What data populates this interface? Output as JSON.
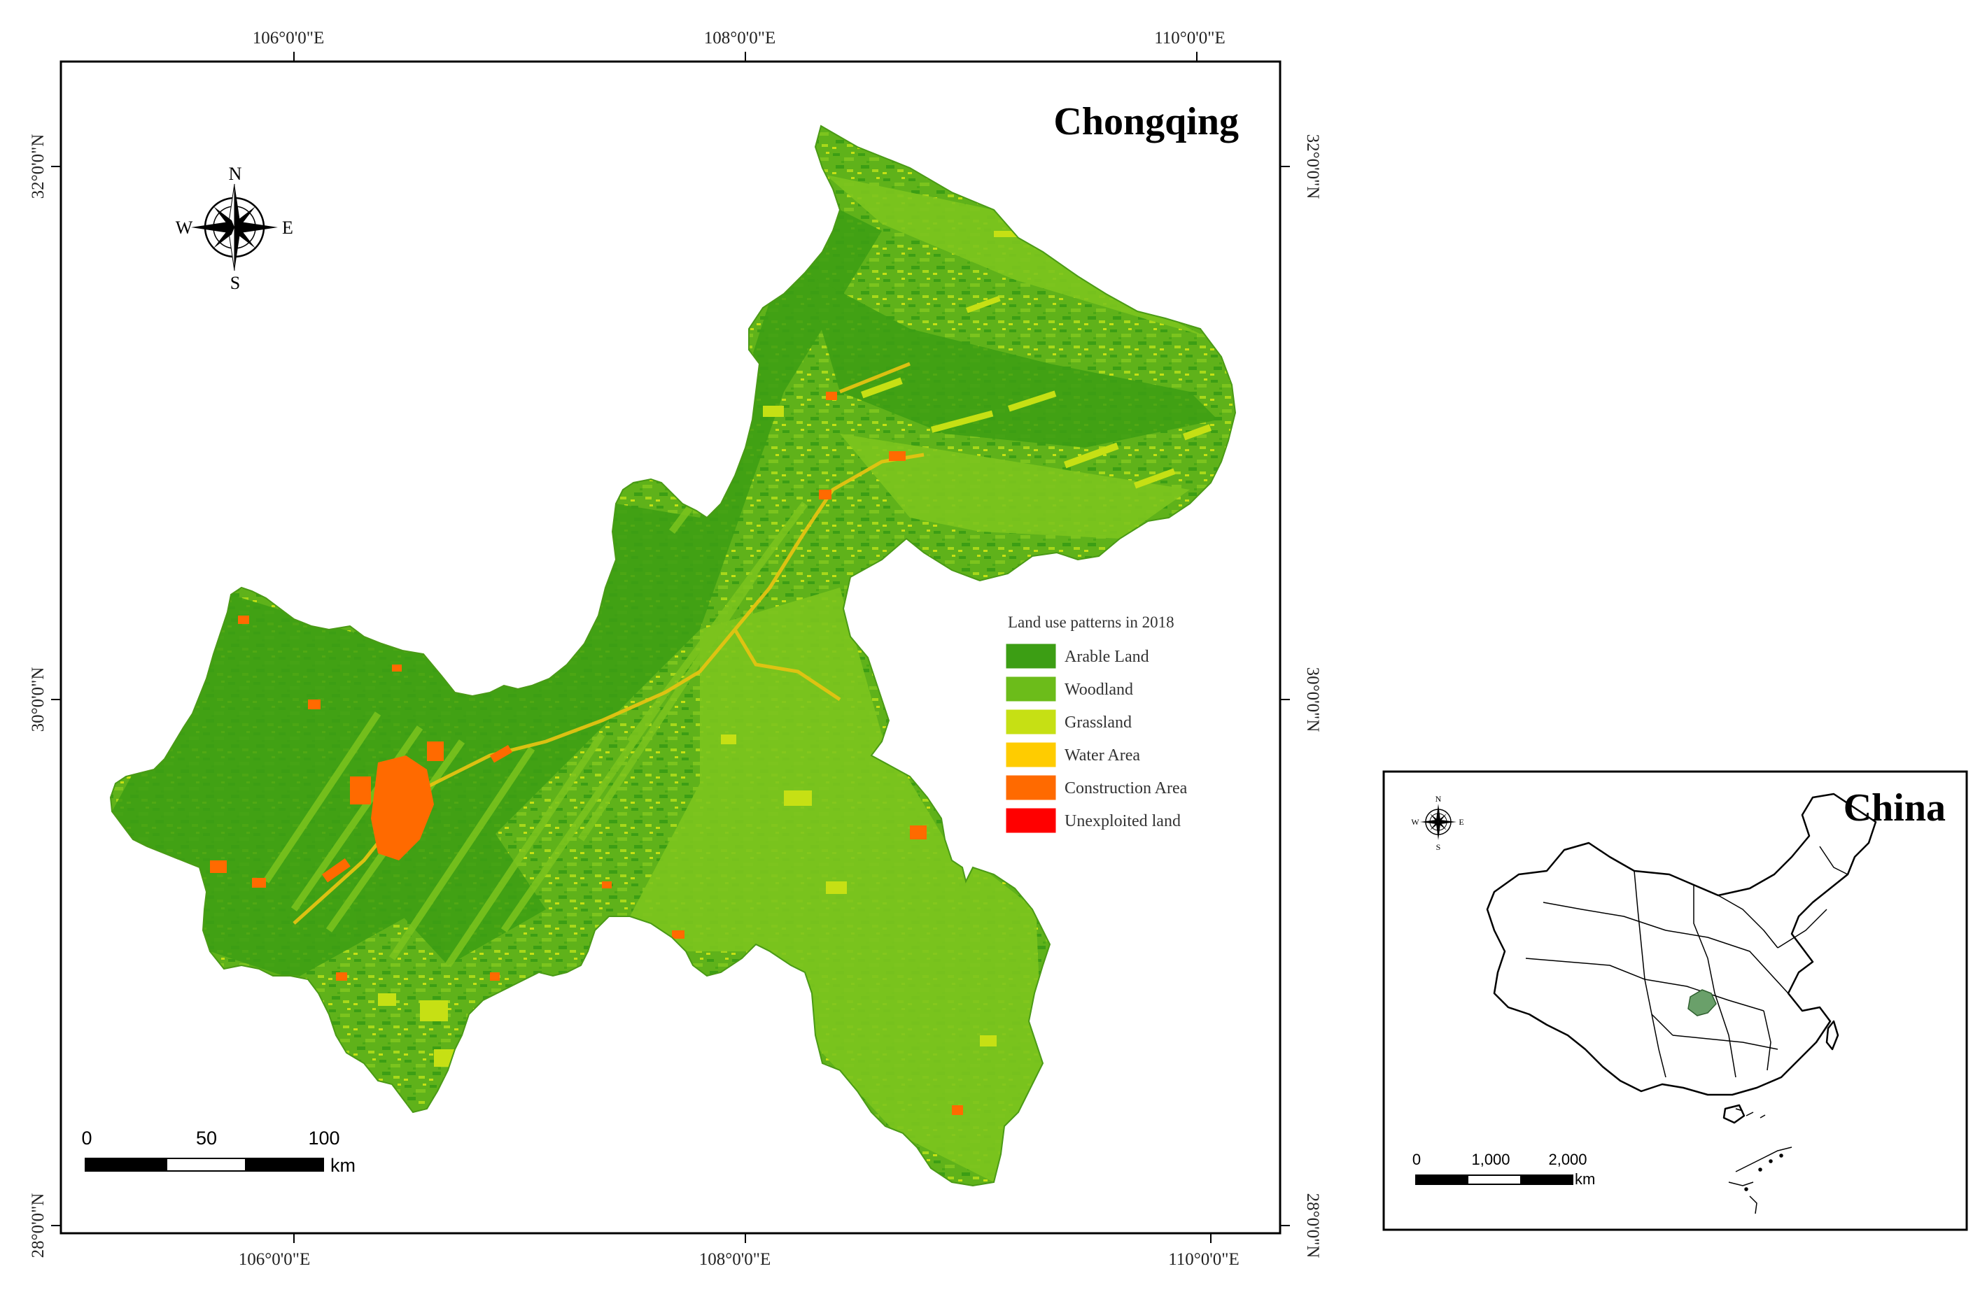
{
  "main_map": {
    "title": "Chongqing",
    "lon_labels": [
      "106°0'0\"E",
      "108°0'0\"E",
      "110°0'0\"E"
    ],
    "lat_labels": [
      "32°0'0\"N",
      "30°0'0\"N",
      "28°0'0\"N"
    ],
    "compass": {
      "n": "N",
      "s": "S",
      "e": "E",
      "w": "W"
    },
    "scale": {
      "ticks": [
        "0",
        "50",
        "100"
      ],
      "unit": "km"
    }
  },
  "legend": {
    "title": "Land use patterns in 2018",
    "items": [
      {
        "label": "Arable Land",
        "color": "#3c9e14"
      },
      {
        "label": "Woodland",
        "color": "#6cbc1a"
      },
      {
        "label": "Grassland",
        "color": "#c6e014"
      },
      {
        "label": "Water Area",
        "color": "#ffcc00"
      },
      {
        "label": "Construction Area",
        "color": "#ff6a00"
      },
      {
        "label": "Unexploited land",
        "color": "#ff0000"
      }
    ]
  },
  "inset_map": {
    "title": "China",
    "compass": {
      "n": "N",
      "s": "S",
      "e": "E",
      "w": "W"
    },
    "scale": {
      "ticks": [
        "0",
        "1,000",
        "2,000"
      ],
      "unit": "km"
    },
    "highlight_color": "#6aa06a"
  }
}
